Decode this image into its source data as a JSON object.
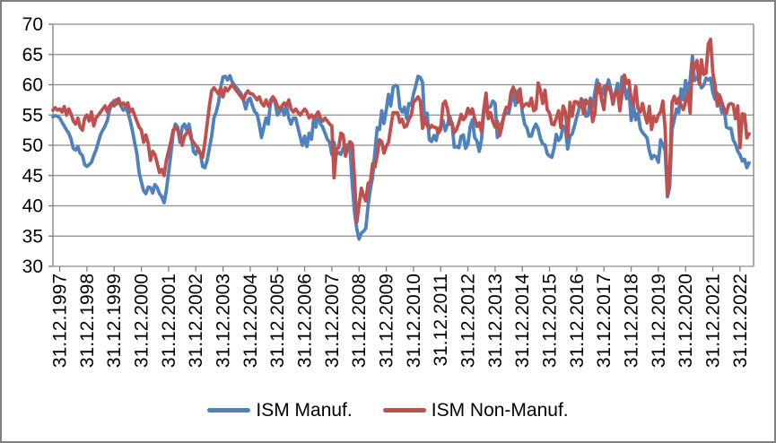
{
  "page": {
    "background": "#FFFFFF",
    "border_color": "#7F7F7F"
  },
  "legend": {
    "items": [
      "ISM Manuf.",
      "ISM Non-Manuf."
    ]
  },
  "chart_data": {
    "type": "line",
    "title": "",
    "xlabel": "",
    "ylabel": "",
    "x_frequency": "monthly",
    "x_start_month": "1997-09",
    "x_tick_labels": [
      "31.12.1997",
      "31.12.1998",
      "31.12.1999",
      "31.12.2000",
      "31.12.2001",
      "31.12.2002",
      "31.12.2003",
      "31.12.2004",
      "31.12.2005",
      "31.12.2006",
      "31.12.2007",
      "31.12.2008",
      "31.12.2009",
      "31.12.2010",
      "31.12.2011",
      "31.12.2012",
      "31.12.2013",
      "31.12.2014",
      "31.12.2015",
      "31.12.2016",
      "31.12.2017",
      "31.12.2018",
      "31.12.2019",
      "31.12.2020",
      "31.12.2021",
      "31.12.2022"
    ],
    "y_ticks": [
      30,
      35,
      40,
      45,
      50,
      55,
      60,
      65,
      70
    ],
    "ylim": [
      30,
      70
    ],
    "grid": true,
    "grid_color": "#8C8C8C",
    "axis_color": "#808080",
    "legend_position": "bottom",
    "series": [
      {
        "name": "ISM Manuf.",
        "color": "#4F81BD",
        "values": [
          54.7,
          54.9,
          54.8,
          54.5,
          53.8,
          53.2,
          52.5,
          52.0,
          51.0,
          49.5,
          49.2,
          49.8,
          48.7,
          48.3,
          46.8,
          46.5,
          46.8,
          47.2,
          48.3,
          49.2,
          50.5,
          51.8,
          52.5,
          53.2,
          54.1,
          55.9,
          56.8,
          57.4,
          56.8,
          57.2,
          56.5,
          55.8,
          56.2,
          55.5,
          54.2,
          52.5,
          50.5,
          48.7,
          45.5,
          43.9,
          42.5,
          42.0,
          43.1,
          43.0,
          42.1,
          43.5,
          43.0,
          42.0,
          41.5,
          40.5,
          42.5,
          45.5,
          48.5,
          52.0,
          53.5,
          53.0,
          50.5,
          53.0,
          53.5,
          52.5,
          53.5,
          51.5,
          49.0,
          48.5,
          49.5,
          48.8,
          46.5,
          46.3,
          47.5,
          49.5,
          51.5,
          54.5,
          55.5,
          57.0,
          59.5,
          61.3,
          61.4,
          60.8,
          61.5,
          60.5,
          60.0,
          59.5,
          59.0,
          58.5,
          57.5,
          56.0,
          57.5,
          57.8,
          56.5,
          55.5,
          55.2,
          53.5,
          51.3,
          53.0,
          54.5,
          53.5,
          57.5,
          58.0,
          57.0,
          55.0,
          55.5,
          56.5,
          55.0,
          56.5,
          54.5,
          53.5,
          54.5,
          54.5,
          53.0,
          51.5,
          50.0,
          51.5,
          49.8,
          52.0,
          51.0,
          54.5,
          53.0,
          55.5,
          53.5,
          53.0,
          52.0,
          51.0,
          50.5,
          48.5,
          50.5,
          48.5,
          48.8,
          48.5,
          49.5,
          50.0,
          50.0,
          49.8,
          43.5,
          38.9,
          36.2,
          34.5,
          35.5,
          35.8,
          36.3,
          40.1,
          42.8,
          44.8,
          48.9,
          52.9,
          52.6,
          55.7,
          53.6,
          55.9,
          58.4,
          56.5,
          59.6,
          59.9,
          59.7,
          56.2,
          55.5,
          56.3,
          54.4,
          56.9,
          56.6,
          58.5,
          59.8,
          61.4,
          61.2,
          60.4,
          53.5,
          55.3,
          50.9,
          50.6,
          51.6,
          50.8,
          52.7,
          53.1,
          54.1,
          52.4,
          53.4,
          54.8,
          53.5,
          49.7,
          49.8,
          49.6,
          51.5,
          51.7,
          49.5,
          50.2,
          53.1,
          54.2,
          51.3,
          50.7,
          49.0,
          50.9,
          55.4,
          55.7,
          56.2,
          56.4,
          57.3,
          56.9,
          51.3,
          53.2,
          53.7,
          54.9,
          55.4,
          55.3,
          57.1,
          59.0,
          56.6,
          59.0,
          58.7,
          55.5,
          53.5,
          52.9,
          51.5,
          51.5,
          52.8,
          53.5,
          52.7,
          51.1,
          50.2,
          50.1,
          48.6,
          48.2,
          48.0,
          49.5,
          51.8,
          50.8,
          51.3,
          53.2,
          52.6,
          49.4,
          51.5,
          51.9,
          53.2,
          54.7,
          56.0,
          57.7,
          57.2,
          54.8,
          54.9,
          57.8,
          56.3,
          58.8,
          60.8,
          58.7,
          58.2,
          59.7,
          59.1,
          60.8,
          59.3,
          57.3,
          58.7,
          60.2,
          58.1,
          61.3,
          59.8,
          57.7,
          59.3,
          54.1,
          56.6,
          54.2,
          55.3,
          52.8,
          52.1,
          51.7,
          51.2,
          49.1,
          47.8,
          48.3,
          48.1,
          47.2,
          50.9,
          50.1,
          49.1,
          41.5,
          43.1,
          52.6,
          54.2,
          56.0,
          55.4,
          59.3,
          57.5,
          60.7,
          58.7,
          60.8,
          64.7,
          60.7,
          61.2,
          60.6,
          59.5,
          59.9,
          61.1,
          60.8,
          61.1,
          58.7,
          57.6,
          58.6,
          57.1,
          55.4,
          56.1,
          53.0,
          52.8,
          52.8,
          50.9,
          50.2,
          49.0,
          48.4,
          47.4,
          47.7,
          46.3,
          47.1
        ]
      },
      {
        "name": "ISM Non-Manuf.",
        "color": "#C0504D",
        "values": [
          55.8,
          56.2,
          55.8,
          56.0,
          55.5,
          56.4,
          55.0,
          56.0,
          55.2,
          54.0,
          53.5,
          54.5,
          53.0,
          52.5,
          54.5,
          55.0,
          54.0,
          55.5,
          53.2,
          54.5,
          55.0,
          55.5,
          56.0,
          56.5,
          55.5,
          56.5,
          57.0,
          56.5,
          57.5,
          57.7,
          56.5,
          57.0,
          56.5,
          57.0,
          55.5,
          56.0,
          55.0,
          54.0,
          53.0,
          52.5,
          50.5,
          51.7,
          50.3,
          47.5,
          49.0,
          48.5,
          47.0,
          45.5,
          46.0,
          45.0,
          47.5,
          49.0,
          50.5,
          52.5,
          53.0,
          52.5,
          51.5,
          50.0,
          51.5,
          52.0,
          52.5,
          51.0,
          50.5,
          50.0,
          49.5,
          48.5,
          48.0,
          50.5,
          53.5,
          56.5,
          59.0,
          59.5,
          59.0,
          58.5,
          59.5,
          58.0,
          59.5,
          59.0,
          59.5,
          60.0,
          59.5,
          59.0,
          58.5,
          58.0,
          57.5,
          58.5,
          59.0,
          58.5,
          58.5,
          58.0,
          57.5,
          58.0,
          57.0,
          56.5,
          57.5,
          56.5,
          57.0,
          58.0,
          57.5,
          56.5,
          56.0,
          56.5,
          57.0,
          56.5,
          57.5,
          56.0,
          55.5,
          56.0,
          55.5,
          55.0,
          55.5,
          56.0,
          55.5,
          54.5,
          55.0,
          54.5,
          55.0,
          55.5,
          54.5,
          54.0,
          54.5,
          54.0,
          53.5,
          53.2,
          44.6,
          49.3,
          49.6,
          52.0,
          51.7,
          48.2,
          49.5,
          50.6,
          50.2,
          44.4,
          37.3,
          40.1,
          42.9,
          41.6,
          40.8,
          43.7,
          44.0,
          47.0,
          46.4,
          48.4,
          50.9,
          50.6,
          48.7,
          49.8,
          50.5,
          53.0,
          55.4,
          55.4,
          55.4,
          53.8,
          54.3,
          53.0,
          53.2,
          54.3,
          55.0,
          57.1,
          57.5,
          58.0,
          57.3,
          52.8,
          54.6,
          53.3,
          52.7,
          53.3,
          53.0,
          52.9,
          52.0,
          52.6,
          56.8,
          57.3,
          56.0,
          53.5,
          53.7,
          52.1,
          52.6,
          53.7,
          55.1,
          54.2,
          54.7,
          56.1,
          55.2,
          56.0,
          54.4,
          53.1,
          53.7,
          52.2,
          56.0,
          58.6,
          54.4,
          55.4,
          53.9,
          53.0,
          54.0,
          51.6,
          53.1,
          55.2,
          56.3,
          56.0,
          58.7,
          59.6,
          58.6,
          57.1,
          59.3,
          56.2,
          56.7,
          56.9,
          56.5,
          57.8,
          55.7,
          56.0,
          60.3,
          59.0,
          56.9,
          59.1,
          55.9,
          55.3,
          53.5,
          53.4,
          54.5,
          55.7,
          52.9,
          56.5,
          55.5,
          51.4,
          57.1,
          54.8,
          57.2,
          57.2,
          56.5,
          57.6,
          55.2,
          57.5,
          56.9,
          57.4,
          53.9,
          55.3,
          59.8,
          60.1,
          57.4,
          55.9,
          59.9,
          59.5,
          58.8,
          56.8,
          58.6,
          59.1,
          55.7,
          58.5,
          61.6,
          60.3,
          60.7,
          57.6,
          56.7,
          59.7,
          56.1,
          55.5,
          56.9,
          55.1,
          53.7,
          56.4,
          52.6,
          54.7,
          53.9,
          55.0,
          55.5,
          57.3,
          52.5,
          41.8,
          45.4,
          57.1,
          58.1,
          56.9,
          57.8,
          56.6,
          55.9,
          57.2,
          58.7,
          55.3,
          63.7,
          62.7,
          64.0,
          60.1,
          64.1,
          61.7,
          61.9,
          66.7,
          67.5,
          62.0,
          59.9,
          56.5,
          58.3,
          57.1,
          55.9,
          55.3,
          56.7,
          56.9,
          56.7,
          54.4,
          56.5,
          49.6,
          55.2,
          55.1,
          51.2,
          51.9
        ]
      }
    ]
  }
}
